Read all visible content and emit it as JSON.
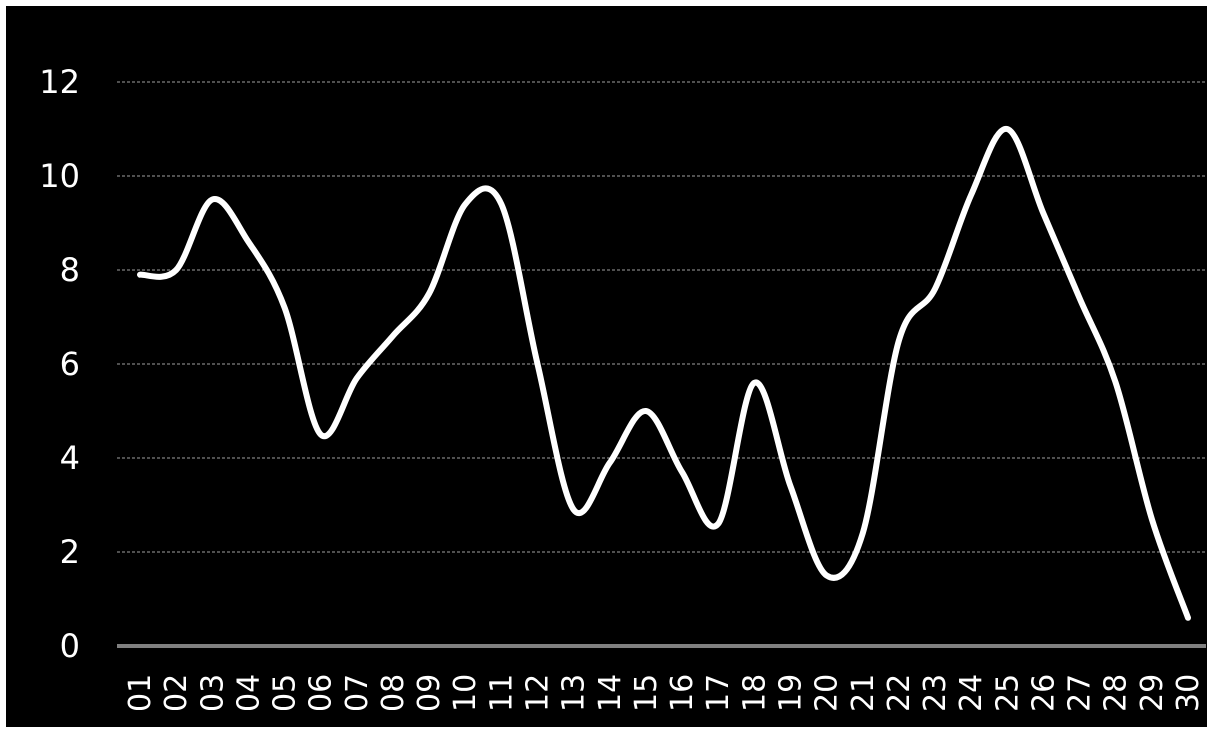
{
  "chart_data": {
    "type": "line",
    "title": "",
    "xlabel": "",
    "ylabel": "",
    "categories": [
      "01",
      "02",
      "03",
      "04",
      "05",
      "06",
      "07",
      "08",
      "09",
      "10",
      "11",
      "12",
      "13",
      "14",
      "15",
      "16",
      "17",
      "18",
      "19",
      "20",
      "21",
      "22",
      "23",
      "24",
      "25",
      "26",
      "27",
      "28",
      "29",
      "30"
    ],
    "series": [
      {
        "values": [
          7.9,
          8.0,
          9.5,
          8.6,
          7.2,
          4.5,
          5.7,
          6.6,
          7.5,
          9.4,
          9.4,
          6.0,
          2.9,
          3.9,
          5.0,
          3.7,
          2.6,
          5.6,
          3.4,
          1.5,
          2.4,
          6.5,
          7.6,
          9.6,
          11.0,
          9.2,
          7.4,
          5.6,
          2.7,
          0.6
        ],
        "color": "#ffffff"
      }
    ],
    "y_ticks": [
      0,
      2,
      4,
      6,
      8,
      10,
      12
    ],
    "ylim": [
      0,
      12
    ],
    "grid": true,
    "legend": "none",
    "colors": {
      "background": "#000000",
      "line": "#ffffff",
      "grid": "#a0a0a0",
      "baseline": "#808080",
      "text": "#ffffff"
    }
  }
}
